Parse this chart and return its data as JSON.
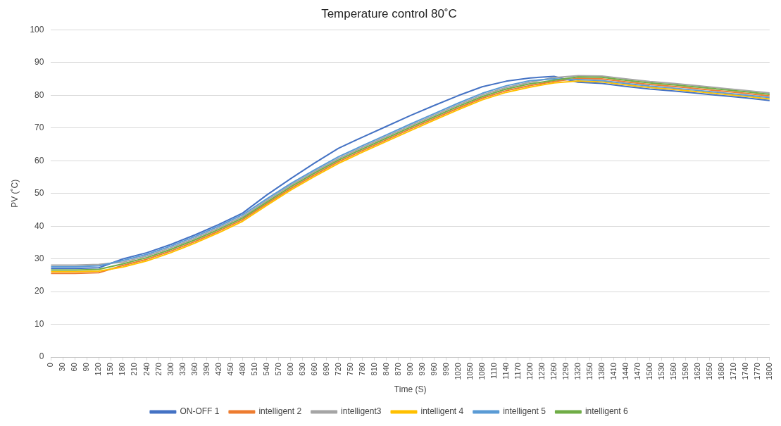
{
  "chart_data": {
    "type": "line",
    "title": "Temperature control 80˚C",
    "xlabel": "Time (S)",
    "ylabel": "PV (˚C)",
    "x": [
      0,
      60,
      120,
      180,
      240,
      300,
      360,
      420,
      480,
      540,
      600,
      660,
      720,
      780,
      840,
      900,
      960,
      1020,
      1080,
      1140,
      1200,
      1260,
      1320,
      1380,
      1440,
      1500,
      1560,
      1620,
      1680,
      1740,
      1800
    ],
    "series": [
      {
        "name": "ON-OFF 1",
        "color": "#4472c4",
        "values": [
          27.1,
          27.1,
          27.3,
          30.0,
          31.9,
          34.4,
          37.3,
          40.5,
          44.0,
          49.5,
          54.5,
          59.3,
          63.8,
          67.2,
          70.5,
          73.8,
          76.9,
          79.9,
          82.6,
          84.3,
          85.3,
          85.8,
          84.0,
          83.6,
          82.7,
          81.9,
          81.3,
          80.6,
          79.9,
          79.2,
          78.4
        ]
      },
      {
        "name": "intelligent 2",
        "color": "#ed7d31",
        "values": [
          25.6,
          25.6,
          25.8,
          28.0,
          29.9,
          32.4,
          35.3,
          38.5,
          42.0,
          46.8,
          51.5,
          55.7,
          59.7,
          63.1,
          66.4,
          69.7,
          72.9,
          76.1,
          79.1,
          81.4,
          83.0,
          84.2,
          85.2,
          85.0,
          84.1,
          83.3,
          82.7,
          82.0,
          81.3,
          80.6,
          79.8
        ]
      },
      {
        "name": "intelligent3",
        "color": "#a5a5a5",
        "values": [
          28.1,
          28.1,
          28.3,
          29.0,
          30.9,
          33.4,
          36.3,
          39.5,
          43.0,
          47.8,
          52.5,
          56.7,
          60.7,
          64.1,
          67.4,
          70.7,
          73.9,
          77.1,
          80.1,
          82.4,
          84.0,
          85.4,
          86.0,
          85.9,
          85.0,
          84.2,
          83.6,
          82.9,
          82.2,
          81.5,
          80.7
        ]
      },
      {
        "name": "intelligent 4",
        "color": "#ffc000",
        "values": [
          26.1,
          26.1,
          26.3,
          27.5,
          29.4,
          31.9,
          34.8,
          38.0,
          41.5,
          46.3,
          51.0,
          55.2,
          59.2,
          62.6,
          65.9,
          69.2,
          72.4,
          75.6,
          78.6,
          80.9,
          82.5,
          83.8,
          84.4,
          84.1,
          83.2,
          82.4,
          81.8,
          81.1,
          80.4,
          79.7,
          78.9
        ]
      },
      {
        "name": "intelligent 5",
        "color": "#5b9bd5",
        "values": [
          27.6,
          27.6,
          27.9,
          29.5,
          31.4,
          33.9,
          36.8,
          40.0,
          43.5,
          48.3,
          53.0,
          57.2,
          61.2,
          64.6,
          67.9,
          71.2,
          74.4,
          77.6,
          80.6,
          82.9,
          84.5,
          85.0,
          84.8,
          84.5,
          83.6,
          82.8,
          82.2,
          81.5,
          80.8,
          80.1,
          79.3
        ]
      },
      {
        "name": "intelligent 6",
        "color": "#70ad47",
        "values": [
          26.6,
          26.6,
          26.8,
          28.5,
          30.4,
          32.9,
          35.8,
          39.0,
          42.5,
          47.3,
          52.0,
          56.2,
          60.2,
          63.6,
          66.9,
          70.2,
          73.4,
          76.6,
          79.6,
          81.9,
          83.5,
          84.6,
          85.6,
          85.5,
          84.6,
          83.8,
          83.2,
          82.5,
          81.8,
          81.1,
          80.3
        ]
      }
    ],
    "xlim": [
      0,
      1800
    ],
    "xticks": [
      0,
      30,
      60,
      90,
      120,
      150,
      180,
      210,
      240,
      270,
      300,
      330,
      360,
      390,
      420,
      450,
      480,
      510,
      540,
      570,
      600,
      630,
      660,
      690,
      720,
      750,
      780,
      810,
      840,
      870,
      900,
      930,
      960,
      990,
      1020,
      1050,
      1080,
      1110,
      1140,
      1170,
      1200,
      1230,
      1260,
      1290,
      1320,
      1350,
      1380,
      1410,
      1440,
      1470,
      1500,
      1530,
      1560,
      1590,
      1620,
      1650,
      1680,
      1710,
      1740,
      1770,
      1800
    ],
    "ylim": [
      0,
      100
    ],
    "yticks": [
      0,
      10,
      20,
      30,
      40,
      50,
      60,
      70,
      80,
      90,
      100
    ],
    "grid": "y",
    "legend": "bottom",
    "marker": "none",
    "line_style": "solid"
  }
}
